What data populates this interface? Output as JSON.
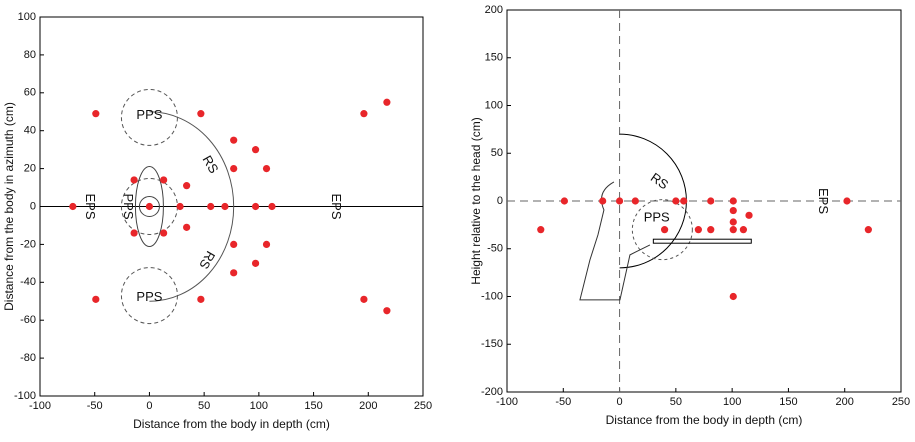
{
  "chart_data": [
    {
      "type": "scatter",
      "x_label": "Distance from the body in depth (cm)",
      "y_label": "Distance from the body in azimuth (cm)",
      "xlim": [
        -100,
        250
      ],
      "ylim": [
        -100,
        100
      ],
      "xticks": [
        -100,
        -50,
        0,
        50,
        100,
        150,
        200,
        250
      ],
      "yticks": [
        -100,
        -80,
        -60,
        -40,
        -20,
        0,
        20,
        40,
        60,
        80,
        100
      ],
      "annotations": [
        "PPS",
        "PPS",
        "PPS",
        "RS",
        "RS",
        "EPS",
        "EPS"
      ],
      "series": [
        {
          "color": "#e8262a",
          "x": [
            -49,
            47,
            217,
            196,
            -70,
            0,
            28,
            56,
            69,
            97,
            112,
            -14,
            13,
            -14,
            13,
            34,
            34,
            77,
            77,
            77,
            77,
            97,
            97,
            107,
            107,
            -49,
            47,
            196,
            217
          ],
          "values": [
            49,
            49,
            55,
            49,
            0,
            0,
            0,
            0,
            0,
            0,
            0,
            14,
            14,
            -14,
            -14,
            11,
            -11,
            35,
            20,
            -20,
            -35,
            30,
            -30,
            20,
            -20,
            -49,
            -49,
            -49,
            -55
          ]
        }
      ]
    },
    {
      "type": "scatter",
      "x_label": "Distance from the body in depth (cm)",
      "y_label": "Height relative to the head (cm)",
      "xlim": [
        -100,
        250
      ],
      "ylim": [
        -200,
        200
      ],
      "xticks": [
        -100,
        -50,
        0,
        50,
        100,
        150,
        200,
        250
      ],
      "yticks": [
        -200,
        -150,
        -100,
        -50,
        0,
        50,
        100,
        150,
        200
      ],
      "annotations": [
        "RS",
        "EPS",
        "PPS"
      ],
      "series": [
        {
          "color": "#e8262a",
          "x": [
            -70,
            -49,
            -15,
            0,
            14,
            40,
            50,
            57,
            70,
            81,
            81,
            101,
            101,
            101,
            101,
            110,
            115,
            101,
            202,
            221
          ],
          "values": [
            -30,
            0,
            0,
            0,
            0,
            -30,
            0,
            0,
            -30,
            -30,
            0,
            0,
            -10,
            -22,
            -30,
            -30,
            -15,
            -100,
            0,
            -30
          ]
        }
      ]
    }
  ]
}
